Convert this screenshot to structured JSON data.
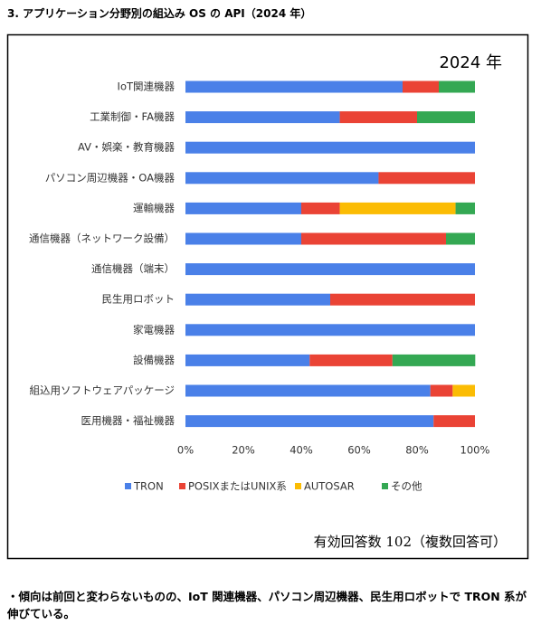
{
  "heading": "3. アプリケーション分野別の組込み OS の API（2024 年）",
  "note": "・傾向は前回と変わらないものの、IoT 関連機器、パソコン周辺機器、民生用ロボットで TRON 系が伸びている。",
  "chart_data": {
    "type": "stacked-barh",
    "title": "2024 年",
    "annotation": "有効回答数 102（複数回答可）",
    "categories": [
      "IoT関連機器",
      "工業制御・FA機器",
      "AV・娯楽・教育機器",
      "パソコン周辺機器・OA機器",
      "運輸機器",
      "通信機器（ネットワーク設備）",
      "通信機器（端末）",
      "民生用ロボット",
      "家電機器",
      "設備機器",
      "組込用ソフトウェアパッケージ",
      "医用機器・福祉機器"
    ],
    "series": [
      {
        "name": "TRON",
        "color": "#4a80e8",
        "values": [
          75,
          53.3,
          100,
          66.7,
          40,
          40,
          100,
          50,
          100,
          42.9,
          84.6,
          85.7
        ]
      },
      {
        "name": "POSIXまたはUNIX系",
        "color": "#ea4335",
        "values": [
          12.5,
          26.7,
          0,
          33.3,
          13.3,
          50,
          0,
          50,
          0,
          28.6,
          7.7,
          14.3
        ]
      },
      {
        "name": "AUTOSAR",
        "color": "#fbbc04",
        "values": [
          0,
          0,
          0,
          0,
          40,
          0,
          0,
          0,
          0,
          0,
          7.7,
          0
        ]
      },
      {
        "name": "その他",
        "color": "#34a853",
        "values": [
          12.5,
          20,
          0,
          0,
          6.7,
          10,
          0,
          0,
          0,
          28.6,
          0,
          0
        ]
      }
    ],
    "xlim": [
      0,
      100
    ],
    "xticks": [
      {
        "value": 0,
        "label": "0%"
      },
      {
        "value": 20,
        "label": "20%"
      },
      {
        "value": 40,
        "label": "40%"
      },
      {
        "value": 60,
        "label": "60%"
      },
      {
        "value": 80,
        "label": "80%"
      },
      {
        "value": 100,
        "label": "100%"
      }
    ],
    "grid": false,
    "legend": "bottom"
  }
}
